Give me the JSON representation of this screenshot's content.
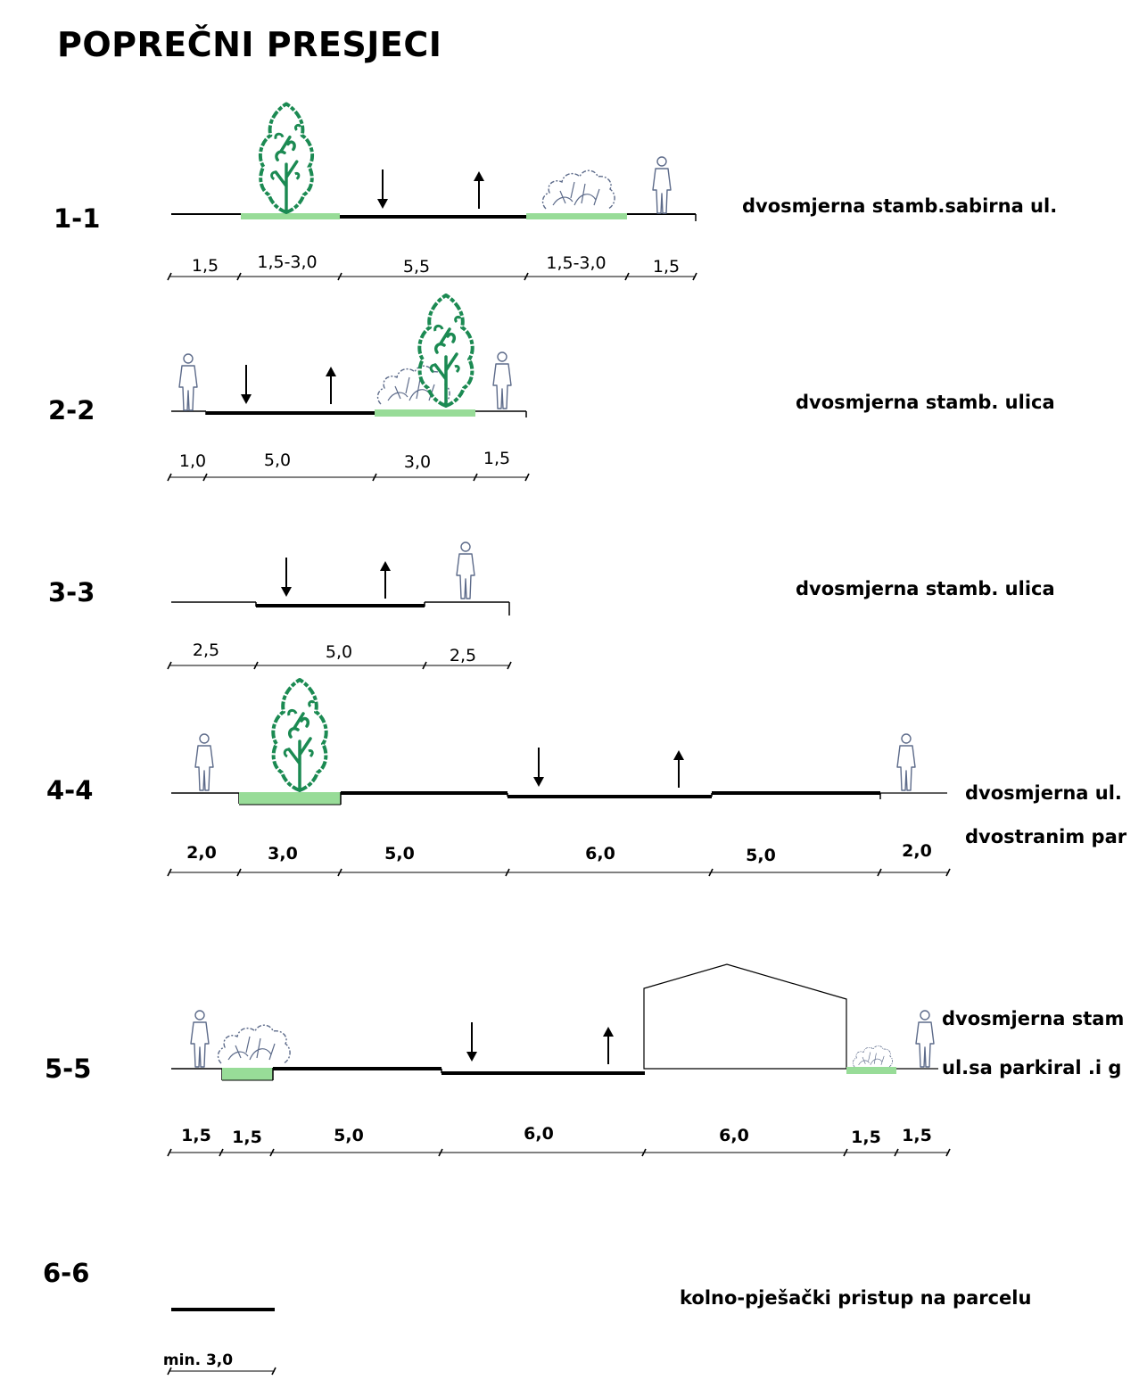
{
  "title": "POPREČNI PRESJECI",
  "colors": {
    "line": "#000000",
    "green_strip": "#98dc98",
    "tree": "#1b8a52",
    "figure": "#5d6b8a"
  },
  "sections": [
    {
      "id": "1-1",
      "description": [
        "dvosmjerna stamb.sabirna ul."
      ],
      "dimensions": [
        "1,5",
        "1,5-3,0",
        "5,5",
        "1,5-3,0",
        "1,5"
      ]
    },
    {
      "id": "2-2",
      "description": [
        "dvosmjerna stamb. ulica"
      ],
      "dimensions": [
        "1,0",
        "5,0",
        "3,0",
        "1,5"
      ]
    },
    {
      "id": "3-3",
      "description": [
        "dvosmjerna stamb. ulica"
      ],
      "dimensions": [
        "2,5",
        "5,0",
        "2,5"
      ]
    },
    {
      "id": "4-4",
      "description": [
        "dvosmjerna ul.",
        "dvostranim par"
      ],
      "dimensions": [
        "2,0",
        "3,0",
        "5,0",
        "6,0",
        "5,0",
        "2,0"
      ]
    },
    {
      "id": "5-5",
      "description": [
        "dvosmjerna stam",
        "ul.sa parkiral .i g"
      ],
      "dimensions": [
        "1,5",
        "1,5",
        "5,0",
        "6,0",
        "6,0",
        "1,5",
        "1,5"
      ]
    },
    {
      "id": "6-6",
      "description": [
        "kolno-pješački pristup na parcelu"
      ],
      "dimensions": [
        "min.  3,0"
      ]
    }
  ]
}
